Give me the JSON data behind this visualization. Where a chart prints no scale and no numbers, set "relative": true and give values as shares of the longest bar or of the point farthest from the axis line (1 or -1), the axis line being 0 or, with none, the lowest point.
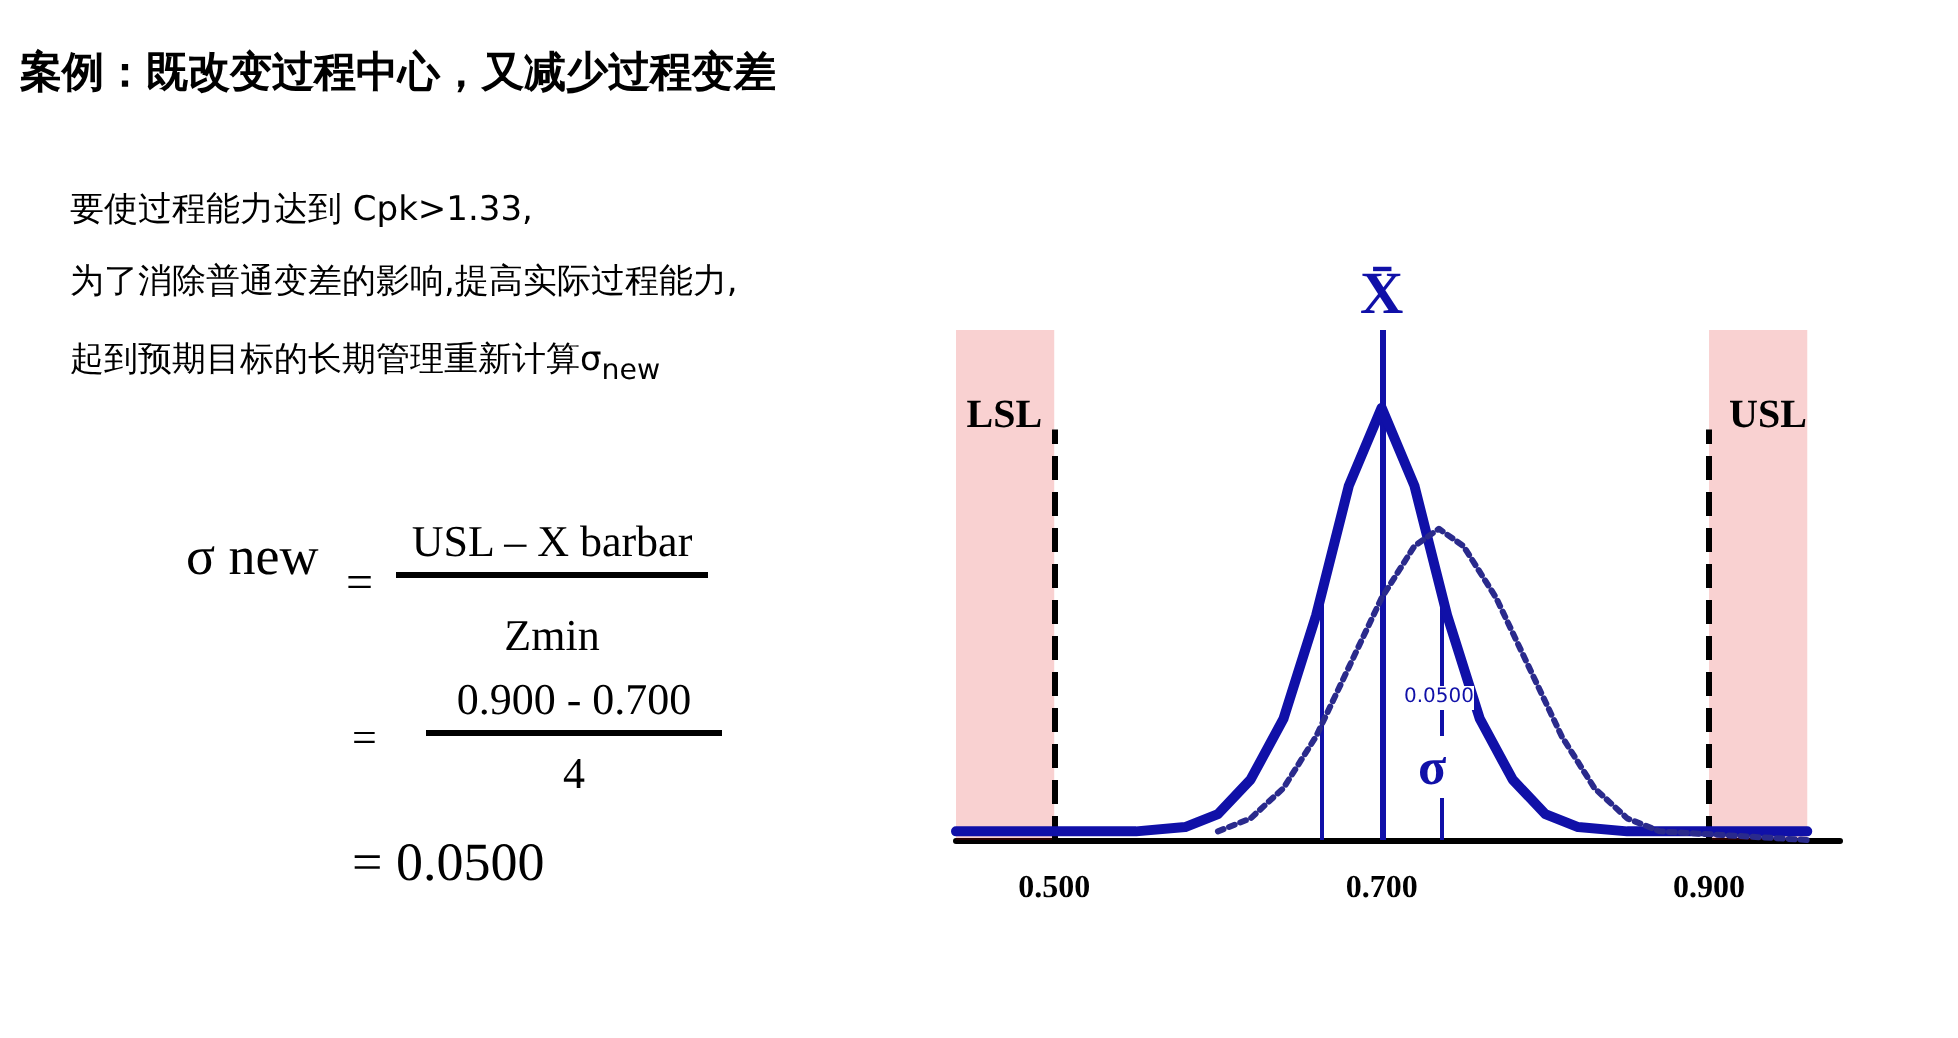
{
  "chart_data": {
    "type": "line",
    "title": "案例：既改变过程中心，又减少过程变差",
    "relative": true,
    "x": [
      0.44,
      0.55,
      0.58,
      0.6,
      0.62,
      0.64,
      0.66,
      0.68,
      0.7,
      0.72,
      0.74,
      0.76,
      0.78,
      0.8,
      0.82,
      0.85,
      0.96
    ],
    "series": [
      {
        "color": "#1010a8",
        "line_style": "solid",
        "values": [
          0.02,
          0.02,
          0.03,
          0.06,
          0.14,
          0.28,
          0.52,
          0.82,
          1,
          0.82,
          0.52,
          0.28,
          0.14,
          0.06,
          0.03,
          0.02,
          0.02
        ]
      },
      {
        "color": "#2a2a8c",
        "line_style": "dotted",
        "x": [
          0.6,
          0.62,
          0.64,
          0.66,
          0.68,
          0.7,
          0.72,
          0.735,
          0.75,
          0.77,
          0.79,
          0.81,
          0.83,
          0.85,
          0.87,
          0.96
        ],
        "values": [
          0.02,
          0.05,
          0.12,
          0.24,
          0.4,
          0.56,
          0.68,
          0.72,
          0.68,
          0.56,
          0.4,
          0.24,
          0.12,
          0.05,
          0.02,
          0.0
        ]
      }
    ],
    "xlim": [
      0.44,
      0.98
    ],
    "xticks": [
      {
        "value": 0.5,
        "label": "0.500"
      },
      {
        "value": 0.7,
        "label": "0.700"
      },
      {
        "value": 0.9,
        "label": "0.900"
      }
    ],
    "grid": false,
    "marker": "none",
    "ref_lines": [
      {
        "axis": "x",
        "value": 0.5,
        "label": "LSL",
        "color": "#000000",
        "line_style": "dashed"
      },
      {
        "axis": "x",
        "value": 0.9,
        "label": "USL",
        "color": "#000000",
        "line_style": "dashed"
      },
      {
        "axis": "x",
        "value": 0.7,
        "label": "X̄",
        "color": "#1010a8",
        "line_style": "solid"
      },
      {
        "axis": "x",
        "value": 0.663,
        "color": "#1010a8",
        "line_style": "solid"
      },
      {
        "axis": "x",
        "value": 0.737,
        "color": "#1010a8",
        "line_style": "solid"
      }
    ],
    "bands": [
      {
        "axis": "x",
        "from": 0.44,
        "to": 0.5,
        "color": "#e00000"
      },
      {
        "axis": "x",
        "from": 0.9,
        "to": 0.96,
        "color": "#e00000"
      }
    ],
    "annotations": [
      "要使过程能力达到 Cpk>1.33,",
      "为了消除普通变差的影响,提高实际过程能力,",
      "起到预期目标的长期管理重新计算σ$_{new}$",
      "σ new",
      "=",
      "USL – X barbar",
      "Zmin",
      "=",
      "0.900 - 0.700",
      "4",
      "= 0.0500",
      "0.0500",
      "σ"
    ]
  }
}
